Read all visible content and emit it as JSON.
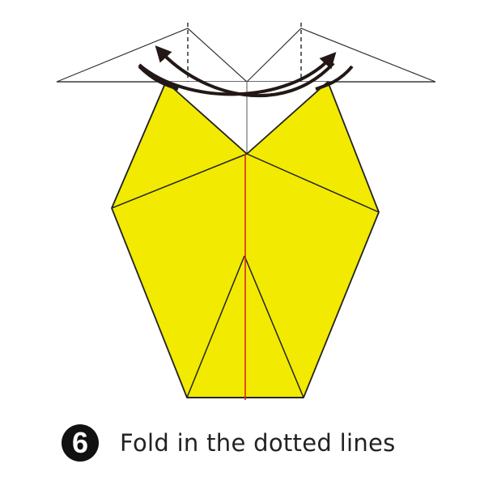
{
  "step": {
    "number": "6",
    "instruction": "Fold in the dotted lines"
  },
  "colors": {
    "paper": "#f2ea00",
    "paper_back": "#ffffff",
    "outline": "#222222",
    "center_line": "#e02020",
    "arrow": "#231815",
    "badge": "#111111"
  },
  "icons": {
    "left_arrow": "curved-arrow-left-icon",
    "right_arrow": "curved-arrow-right-icon"
  }
}
